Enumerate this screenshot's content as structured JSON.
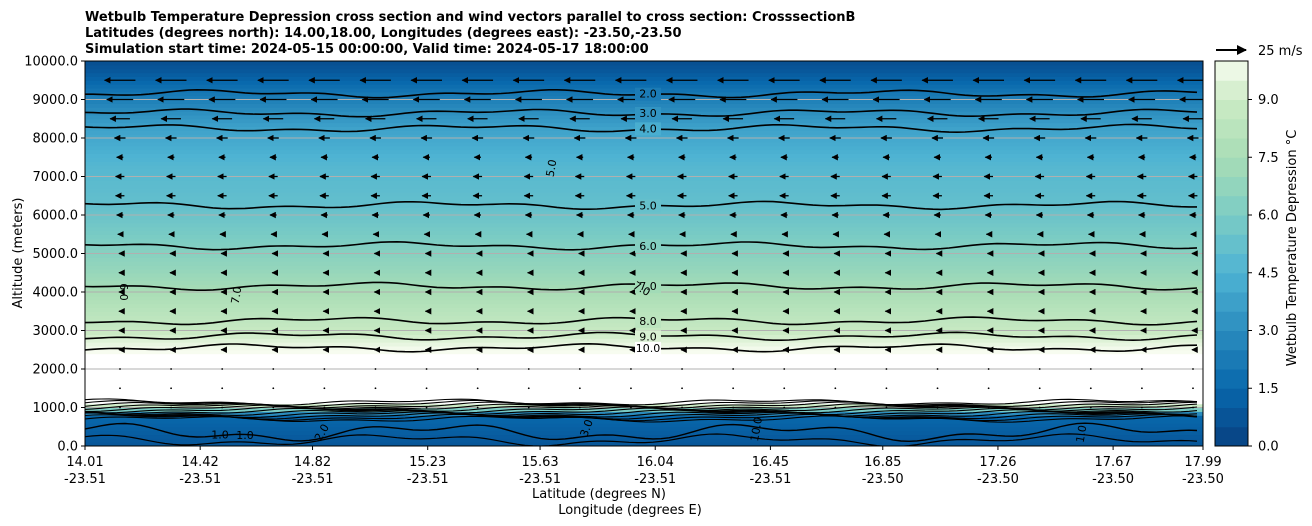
{
  "chart_data": {
    "type": "contour",
    "title_lines": [
      "Wetbulb Temperature Depression cross section and wind vectors parallel to cross section: CrosssectionB",
      "Latitudes (degrees north): 14.00,18.00, Longitudes (degrees east): -23.50,-23.50",
      "Simulation start time: 2024-05-15 00:00:00, Valid time: 2024-05-17 18:00:00"
    ],
    "ylabel": "Altitude (meters)",
    "xlabel_lat": "Latitude (degrees N)",
    "xlabel_lon": "Longitude (degrees E)",
    "ylim": [
      0,
      10000
    ],
    "yticks": [
      "0.0",
      "1000.0",
      "2000.0",
      "3000.0",
      "4000.0",
      "5000.0",
      "6000.0",
      "7000.0",
      "8000.0",
      "9000.0",
      "10000.0"
    ],
    "xticks_lat": [
      "14.01",
      "14.42",
      "14.82",
      "15.23",
      "15.63",
      "16.04",
      "16.45",
      "16.85",
      "17.26",
      "17.67",
      "17.99"
    ],
    "xticks_lon": [
      "-23.51",
      "-23.51",
      "-23.51",
      "-23.51",
      "-23.51",
      "-23.51",
      "-23.51",
      "-23.50",
      "-23.50",
      "-23.50",
      "-23.50"
    ],
    "colorbar_label": "Wetbulb Temperature Depression °C",
    "colorbar_ticks": [
      "0.0",
      "1.5",
      "3.0",
      "4.5",
      "6.0",
      "7.5",
      "9.0"
    ],
    "colorbar_range": [
      0,
      10
    ],
    "quiver_key_label": "25 m/s",
    "contour_levels": [
      {
        "value": 2,
        "label": "2.0",
        "alt": 9150
      },
      {
        "value": 3,
        "label": "3.0",
        "alt": 8650
      },
      {
        "value": 4,
        "label": "4.0",
        "alt": 8250
      },
      {
        "value": 5,
        "label": "5.0",
        "alt": 6250
      },
      {
        "value": 6,
        "label": "6.0",
        "alt": 5200
      },
      {
        "value": 7,
        "label": "7.0",
        "alt": 4150
      },
      {
        "value": 8,
        "label": "8.0",
        "alt": 3250
      },
      {
        "value": 9,
        "label": "9.0",
        "alt": 2850
      },
      {
        "value": 10,
        "label": "10.0",
        "alt": 2550
      }
    ],
    "extra_labels": [
      "5.0",
      "7.0",
      "7.0",
      "6.0",
      "1.0",
      "1.0",
      "3.0",
      "2.0",
      "1.0",
      "10.0"
    ],
    "depression_profile": [
      {
        "alt": 0,
        "value": 0.8
      },
      {
        "alt": 800,
        "value": 1.5
      },
      {
        "alt": 1100,
        "value": 10.5
      },
      {
        "alt": 2300,
        "value": 10.5
      },
      {
        "alt": 3000,
        "value": 8.8
      },
      {
        "alt": 4200,
        "value": 7.3
      },
      {
        "alt": 5200,
        "value": 6.2
      },
      {
        "alt": 6300,
        "value": 5.2
      },
      {
        "alt": 7200,
        "value": 4.8
      },
      {
        "alt": 8300,
        "value": 3.8
      },
      {
        "alt": 9100,
        "value": 2.3
      },
      {
        "alt": 9700,
        "value": 1.0
      },
      {
        "alt": 10000,
        "value": 0.5
      }
    ],
    "wind_arrow_rows": [
      {
        "alt": 9500,
        "u": -14
      },
      {
        "alt": 9000,
        "u": -12
      },
      {
        "alt": 8500,
        "u": -9
      },
      {
        "alt": 8000,
        "u": -5
      },
      {
        "alt": 7500,
        "u": -3
      },
      {
        "alt": 7000,
        "u": -4
      },
      {
        "alt": 6500,
        "u": -4
      },
      {
        "alt": 6000,
        "u": -3
      },
      {
        "alt": 5500,
        "u": -2
      },
      {
        "alt": 5000,
        "u": -1
      },
      {
        "alt": 4500,
        "u": -1
      },
      {
        "alt": 4000,
        "u": -1
      },
      {
        "alt": 3500,
        "u": -1
      },
      {
        "alt": 3000,
        "u": -1
      },
      {
        "alt": 2500,
        "u": -1
      },
      {
        "alt": 2000,
        "u": 0
      },
      {
        "alt": 1500,
        "u": 0
      },
      {
        "alt": 1000,
        "u": 0
      }
    ]
  }
}
